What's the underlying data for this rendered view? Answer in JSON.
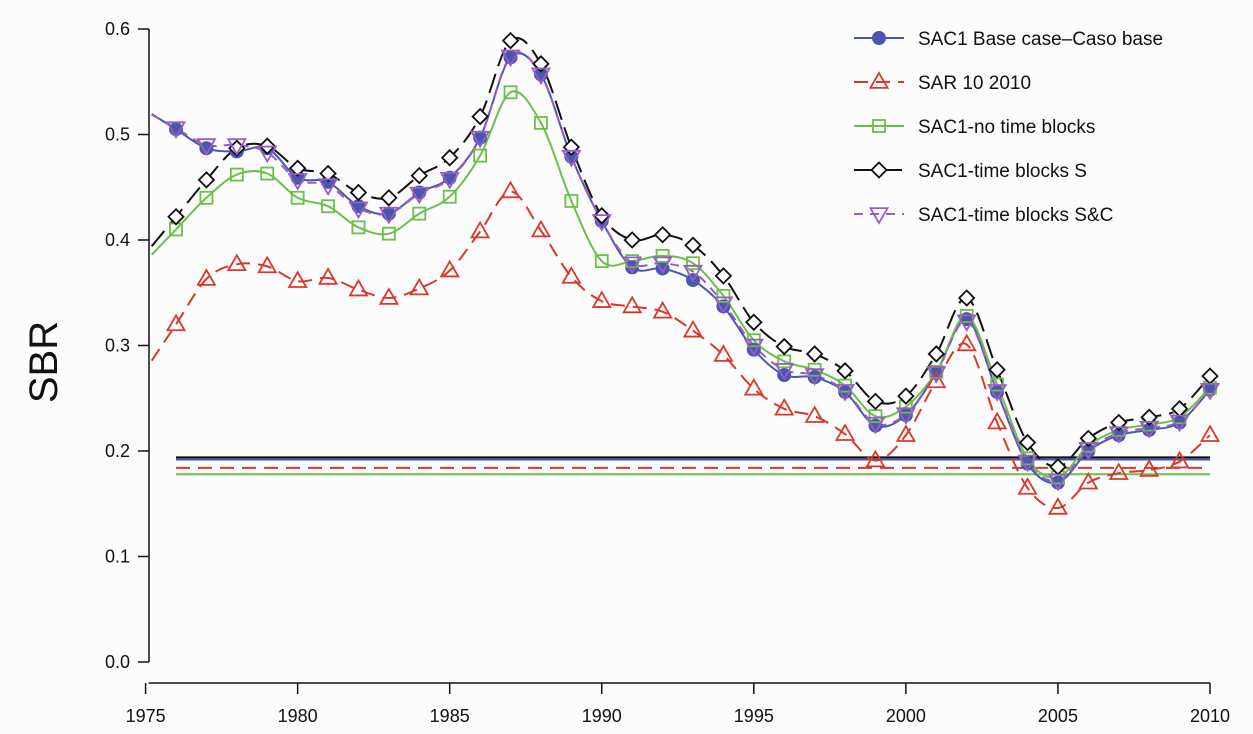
{
  "chart_data": {
    "type": "line",
    "ylabel": "SBR",
    "xlabel": "",
    "title": "",
    "xlim": [
      1975,
      2010
    ],
    "ylim": [
      0.0,
      0.6
    ],
    "xticks": [
      1975,
      1980,
      1985,
      1990,
      1995,
      2000,
      2005,
      2010
    ],
    "yticks": [
      0.0,
      0.1,
      0.2,
      0.3,
      0.4,
      0.5,
      0.6
    ],
    "ytick_labels": [
      "0.0",
      "0.1",
      "0.2",
      "0.3",
      "0.4",
      "0.5",
      "0.6"
    ],
    "grid": false,
    "legend_position": "top-right",
    "series": [
      {
        "name": "SAC1 Base case–Caso base",
        "color": "#4a56b0",
        "marker": "filled-circle",
        "dash": "solid",
        "x": [
          1976,
          1977,
          1978,
          1979,
          1980,
          1981,
          1982,
          1983,
          1984,
          1985,
          1986,
          1987,
          1988,
          1989,
          1990,
          1991,
          1992,
          1993,
          1994,
          1995,
          1996,
          1997,
          1998,
          1999,
          2000,
          2001,
          2002,
          2003,
          2004,
          2005,
          2006,
          2007,
          2008,
          2009,
          2010
        ],
        "values": [
          0.505,
          0.487,
          0.484,
          0.487,
          0.459,
          0.455,
          0.432,
          0.425,
          0.445,
          0.459,
          0.497,
          0.573,
          0.557,
          0.479,
          0.418,
          0.374,
          0.373,
          0.362,
          0.337,
          0.296,
          0.272,
          0.27,
          0.256,
          0.224,
          0.234,
          0.274,
          0.325,
          0.256,
          0.188,
          0.17,
          0.2,
          0.215,
          0.22,
          0.227,
          0.258
        ]
      },
      {
        "name": "SAR 10 2010",
        "color": "#d9392b",
        "marker": "triangle-up",
        "dash": "dashed",
        "x": [
          1976,
          1977,
          1978,
          1979,
          1980,
          1981,
          1982,
          1983,
          1984,
          1985,
          1986,
          1987,
          1988,
          1989,
          1990,
          1991,
          1992,
          1993,
          1994,
          1995,
          1996,
          1997,
          1998,
          1999,
          2000,
          2001,
          2002,
          2003,
          2004,
          2005,
          2006,
          2007,
          2008,
          2009,
          2010
        ],
        "values": [
          0.32,
          0.363,
          0.377,
          0.375,
          0.361,
          0.364,
          0.353,
          0.345,
          0.354,
          0.371,
          0.408,
          0.446,
          0.409,
          0.365,
          0.342,
          0.337,
          0.332,
          0.314,
          0.291,
          0.259,
          0.24,
          0.233,
          0.216,
          0.191,
          0.215,
          0.266,
          0.301,
          0.227,
          0.165,
          0.146,
          0.17,
          0.179,
          0.182,
          0.19,
          0.215
        ]
      },
      {
        "name": "SAC1-no time blocks",
        "color": "#6cc04a",
        "marker": "square",
        "dash": "solid",
        "x": [
          1976,
          1977,
          1978,
          1979,
          1980,
          1981,
          1982,
          1983,
          1984,
          1985,
          1986,
          1987,
          1988,
          1989,
          1990,
          1991,
          1992,
          1993,
          1994,
          1995,
          1996,
          1997,
          1998,
          1999,
          2000,
          2001,
          2002,
          2003,
          2004,
          2005,
          2006,
          2007,
          2008,
          2009,
          2010
        ],
        "values": [
          0.41,
          0.44,
          0.462,
          0.463,
          0.44,
          0.432,
          0.412,
          0.406,
          0.425,
          0.441,
          0.48,
          0.54,
          0.511,
          0.437,
          0.38,
          0.38,
          0.385,
          0.378,
          0.347,
          0.305,
          0.285,
          0.277,
          0.262,
          0.233,
          0.242,
          0.275,
          0.328,
          0.263,
          0.193,
          0.175,
          0.205,
          0.22,
          0.225,
          0.232,
          0.26
        ]
      },
      {
        "name": "SAC1-time blocks S",
        "color": "#111111",
        "marker": "diamond",
        "dash": "longdash",
        "x": [
          1976,
          1977,
          1978,
          1979,
          1980,
          1981,
          1982,
          1983,
          1984,
          1985,
          1986,
          1987,
          1988,
          1989,
          1990,
          1991,
          1992,
          1993,
          1994,
          1995,
          1996,
          1997,
          1998,
          1999,
          2000,
          2001,
          2002,
          2003,
          2004,
          2005,
          2006,
          2007,
          2008,
          2009,
          2010
        ],
        "values": [
          0.422,
          0.457,
          0.487,
          0.489,
          0.468,
          0.463,
          0.445,
          0.44,
          0.461,
          0.478,
          0.517,
          0.589,
          0.567,
          0.488,
          0.423,
          0.4,
          0.405,
          0.395,
          0.366,
          0.322,
          0.299,
          0.292,
          0.276,
          0.247,
          0.252,
          0.292,
          0.345,
          0.277,
          0.208,
          0.185,
          0.212,
          0.227,
          0.232,
          0.24,
          0.271
        ]
      },
      {
        "name": "SAC1-time blocks S&C",
        "color": "#9a5cc4",
        "marker": "triangle-down",
        "dash": "shortdash",
        "x": [
          1976,
          1977,
          1978,
          1979,
          1980,
          1981,
          1982,
          1983,
          1984,
          1985,
          1986,
          1987,
          1988,
          1989,
          1990,
          1991,
          1992,
          1993,
          1994,
          1995,
          1996,
          1997,
          1998,
          1999,
          2000,
          2001,
          2002,
          2003,
          2004,
          2005,
          2006,
          2007,
          2008,
          2009,
          2010
        ],
        "values": [
          0.506,
          0.49,
          0.49,
          0.483,
          0.457,
          0.452,
          0.43,
          0.425,
          0.444,
          0.458,
          0.497,
          0.574,
          0.557,
          0.479,
          0.418,
          0.378,
          0.378,
          0.37,
          0.34,
          0.3,
          0.277,
          0.272,
          0.257,
          0.226,
          0.235,
          0.274,
          0.323,
          0.257,
          0.19,
          0.172,
          0.202,
          0.217,
          0.222,
          0.228,
          0.258
        ]
      }
    ],
    "reference_lines": [
      {
        "color": "#111111",
        "dash": "solid",
        "value": 0.194
      },
      {
        "color": "#4a56b0",
        "dash": "solid",
        "value": 0.192
      },
      {
        "color": "#d9392b",
        "dash": "dashed",
        "value": 0.184
      },
      {
        "color": "#6cc04a",
        "dash": "solid",
        "value": 0.178
      }
    ]
  }
}
